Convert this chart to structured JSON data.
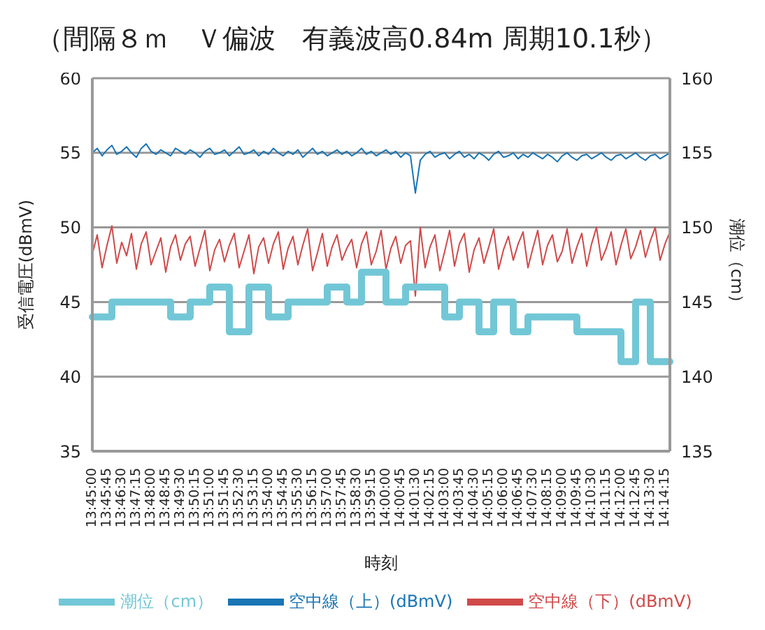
{
  "chart_data": {
    "type": "line",
    "title": "（間隔８ｍ　Ｖ偏波　有義波高0.84m 周期10.1秒）",
    "xlabel": "時刻",
    "ylabel": "受信電圧(dBmV)",
    "y2label": "潮位（cm）",
    "categories": [
      "13:45:00",
      null,
      null,
      "13:45:45",
      null,
      null,
      "13:46:30",
      null,
      null,
      "13:47:15",
      null,
      null,
      "13:48:00",
      null,
      null,
      "13:48:45",
      null,
      null,
      "13:49:30",
      null,
      null,
      "13:50:15",
      null,
      null,
      "13:51:00",
      null,
      null,
      "13:51:45",
      null,
      null,
      "13:52:30",
      null,
      null,
      "13:53:15",
      null,
      null,
      "13:54:00",
      null,
      null,
      "13:54:45",
      null,
      null,
      "13:55:30",
      null,
      null,
      "13:56:15",
      null,
      null,
      "13:57:00",
      null,
      null,
      "13:57:45",
      null,
      null,
      "13:58:30",
      null,
      null,
      "13:59:15",
      null,
      null,
      "14:00:00",
      null,
      null,
      "14:00:45",
      null,
      null,
      "14:01:30",
      null,
      null,
      "14:02:15",
      null,
      null,
      "14:03:00",
      null,
      null,
      "14:03:45",
      null,
      null,
      "14:04:30",
      null,
      null,
      "14:05:15",
      null,
      null,
      "14:06:00",
      null,
      null,
      "14:06:45",
      null,
      null,
      "14:07:30",
      null,
      null,
      "14:08:15",
      null,
      null,
      "14:09:00",
      null,
      null,
      "14:09:45",
      null,
      null,
      "14:10:30",
      null,
      null,
      "14:11:15",
      null,
      null,
      "14:12:00",
      null,
      null,
      "14:12:45",
      null,
      null,
      "14:13:30",
      null,
      null,
      "14:14:15",
      null
    ],
    "series": [
      {
        "name": "空中線（上）(dBmV)",
        "color": "#1a75b4",
        "values": [
          55.0,
          55.3,
          54.8,
          55.2,
          55.5,
          54.9,
          55.1,
          55.4,
          55.0,
          54.7,
          55.3,
          55.6,
          55.1,
          54.9,
          55.2,
          55.0,
          54.8,
          55.3,
          55.1,
          54.9,
          55.2,
          55.0,
          54.7,
          55.1,
          55.3,
          54.9,
          55.0,
          55.2,
          54.8,
          55.1,
          55.4,
          54.9,
          55.0,
          55.2,
          54.8,
          55.1,
          54.9,
          55.3,
          55.0,
          54.8,
          55.1,
          54.9,
          55.2,
          54.7,
          55.0,
          55.3,
          54.9,
          55.1,
          54.8,
          55.0,
          55.2,
          54.9,
          55.1,
          54.8,
          55.0,
          55.3,
          54.9,
          55.1,
          54.8,
          55.0,
          55.2,
          54.9,
          55.1,
          54.7,
          55.0,
          54.8,
          52.3,
          54.5,
          54.9,
          55.1,
          54.7,
          54.9,
          55.0,
          54.6,
          54.9,
          55.1,
          54.7,
          54.9,
          54.6,
          55.0,
          54.8,
          54.5,
          54.9,
          55.1,
          54.7,
          54.8,
          55.0,
          54.6,
          54.9,
          54.7,
          55.0,
          54.8,
          54.6,
          54.9,
          54.7,
          54.4,
          54.8,
          55.0,
          54.7,
          54.5,
          54.8,
          54.9,
          54.6,
          54.8,
          55.0,
          54.7,
          54.5,
          54.8,
          54.9,
          54.6,
          54.8,
          55.0,
          54.7,
          54.5,
          54.8,
          54.9,
          54.6,
          54.8,
          55.0
        ]
      },
      {
        "name": "空中線（下）(dBmV)",
        "color": "#d04a4a",
        "values": [
          48.2,
          49.5,
          47.3,
          48.8,
          50.1,
          47.6,
          49.0,
          48.1,
          49.6,
          47.2,
          48.9,
          49.7,
          47.5,
          48.4,
          49.3,
          47.0,
          48.7,
          49.5,
          47.8,
          48.9,
          49.4,
          47.4,
          48.6,
          49.8,
          47.1,
          48.5,
          49.2,
          47.7,
          48.8,
          49.6,
          47.3,
          48.4,
          49.5,
          46.9,
          48.7,
          49.3,
          47.6,
          48.9,
          49.7,
          47.2,
          48.6,
          49.4,
          47.5,
          48.8,
          49.9,
          47.1,
          48.3,
          49.6,
          47.4,
          48.7,
          49.5,
          47.8,
          48.6,
          49.2,
          47.3,
          48.9,
          49.7,
          47.5,
          48.4,
          49.8,
          47.2,
          48.6,
          49.4,
          47.6,
          48.8,
          49.1,
          45.4,
          50.0,
          47.3,
          48.7,
          49.5,
          47.1,
          48.4,
          49.8,
          47.4,
          48.9,
          49.6,
          47.0,
          48.5,
          49.3,
          47.6,
          48.7,
          49.9,
          47.2,
          48.5,
          49.4,
          47.8,
          48.9,
          49.7,
          47.3,
          48.6,
          49.8,
          47.5,
          48.8,
          49.5,
          47.7,
          48.4,
          49.9,
          47.6,
          48.7,
          49.6,
          47.4,
          48.9,
          50.0,
          47.8,
          48.6,
          49.7,
          47.5,
          48.8,
          49.9,
          47.9,
          48.7,
          49.8,
          48.0,
          49.1,
          50.0,
          47.8,
          48.9,
          49.7
        ]
      },
      {
        "name": "潮位（cm）",
        "color": "#72c7d6",
        "type": "step",
        "axis": "y2",
        "values": [
          144,
          144,
          144,
          144,
          145,
          145,
          145,
          145,
          145,
          145,
          145,
          145,
          145,
          145,
          145,
          145,
          144,
          144,
          144,
          144,
          145,
          145,
          145,
          145,
          146,
          146,
          146,
          146,
          143,
          143,
          143,
          143,
          146,
          146,
          146,
          146,
          144,
          144,
          144,
          144,
          145,
          145,
          145,
          145,
          145,
          145,
          145,
          145,
          146,
          146,
          146,
          146,
          145,
          145,
          145,
          147,
          147,
          147,
          147,
          147,
          145,
          145,
          145,
          145,
          146,
          146,
          146,
          146,
          146,
          146,
          146,
          146,
          144,
          144,
          144,
          145,
          145,
          145,
          145,
          143,
          143,
          143,
          145,
          145,
          145,
          145,
          143,
          143,
          143,
          144,
          144,
          144,
          144,
          144,
          144,
          144,
          144,
          144,
          144,
          143,
          143,
          143,
          143,
          143,
          143,
          143,
          143,
          143,
          141,
          141,
          141,
          145,
          145,
          145,
          141,
          141,
          141,
          141,
          141
        ]
      }
    ],
    "ylim": [
      35,
      60
    ],
    "yticks": [
      35,
      40,
      45,
      50,
      55,
      60
    ],
    "y2lim": [
      135,
      160
    ],
    "y2ticks": [
      135,
      140,
      145,
      150,
      155,
      160
    ],
    "grid": "y",
    "legend": "bottom"
  }
}
